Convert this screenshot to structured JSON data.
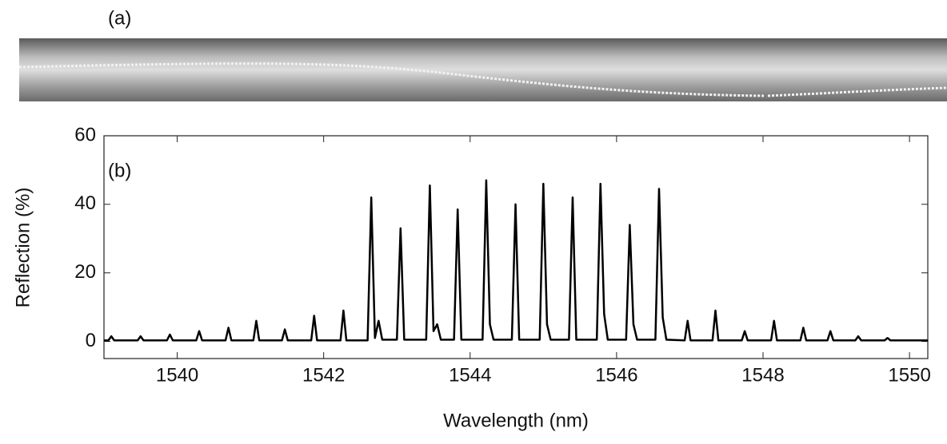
{
  "panel_a_label": "(a)",
  "chart_data": {
    "type": "line",
    "annotation": "(b)",
    "x_label": "Wavelength (nm)",
    "y_label": "Reflection (%)",
    "x": [
      1539.0,
      1539.06,
      1539.1,
      1539.14,
      1539.46,
      1539.5,
      1539.54,
      1539.86,
      1539.9,
      1539.94,
      1540.26,
      1540.3,
      1540.34,
      1540.66,
      1540.7,
      1540.74,
      1541.04,
      1541.08,
      1541.12,
      1541.43,
      1541.47,
      1541.51,
      1541.83,
      1541.87,
      1541.91,
      1542.23,
      1542.27,
      1542.31,
      1542.6,
      1542.65,
      1542.7,
      1542.75,
      1542.8,
      1543.0,
      1543.05,
      1543.1,
      1543.4,
      1543.45,
      1543.5,
      1543.55,
      1543.6,
      1543.78,
      1543.83,
      1543.88,
      1544.17,
      1544.22,
      1544.27,
      1544.32,
      1544.57,
      1544.62,
      1544.67,
      1544.95,
      1545.0,
      1545.05,
      1545.1,
      1545.35,
      1545.4,
      1545.45,
      1545.73,
      1545.78,
      1545.83,
      1545.88,
      1546.13,
      1546.18,
      1546.23,
      1546.28,
      1546.53,
      1546.58,
      1546.63,
      1546.68,
      1546.93,
      1546.97,
      1547.01,
      1547.31,
      1547.35,
      1547.39,
      1547.71,
      1547.75,
      1547.79,
      1548.11,
      1548.15,
      1548.19,
      1548.51,
      1548.55,
      1548.59,
      1548.88,
      1548.92,
      1548.96,
      1549.26,
      1549.3,
      1549.34,
      1549.66,
      1549.7,
      1549.74,
      1550.25
    ],
    "values": [
      0.3,
      0.3,
      1.5,
      0.3,
      0.3,
      1.5,
      0.3,
      0.3,
      2,
      0.3,
      0.3,
      3,
      0.3,
      0.3,
      4,
      0.3,
      0.3,
      6,
      0.3,
      0.3,
      3.5,
      0.3,
      0.3,
      7.5,
      0.3,
      0.3,
      9,
      0.3,
      0.3,
      42,
      1,
      6,
      0.5,
      0.5,
      33,
      0.5,
      0.5,
      45.5,
      3,
      5,
      0.5,
      0.5,
      38.5,
      0.5,
      0.5,
      47,
      5,
      0.5,
      0.5,
      40,
      0.5,
      0.5,
      46,
      5,
      0.5,
      0.5,
      42,
      0.5,
      0.5,
      46,
      8,
      0.5,
      0.5,
      34,
      5,
      0.5,
      0.5,
      44.5,
      7,
      0.5,
      0.3,
      6,
      0.3,
      0.3,
      9,
      0.3,
      0.3,
      3,
      0.3,
      0.3,
      6,
      0.3,
      0.3,
      4,
      0.3,
      0.3,
      3,
      0.3,
      0.3,
      1.5,
      0.3,
      0.3,
      1,
      0.3,
      0.3
    ],
    "color": "#000000",
    "xlim": [
      1539.0,
      1550.25
    ],
    "xticks": [
      1540,
      1542,
      1544,
      1546,
      1548,
      1550
    ],
    "ylim": [
      -5,
      60
    ],
    "yticks": [
      0,
      20,
      40,
      60
    ]
  }
}
